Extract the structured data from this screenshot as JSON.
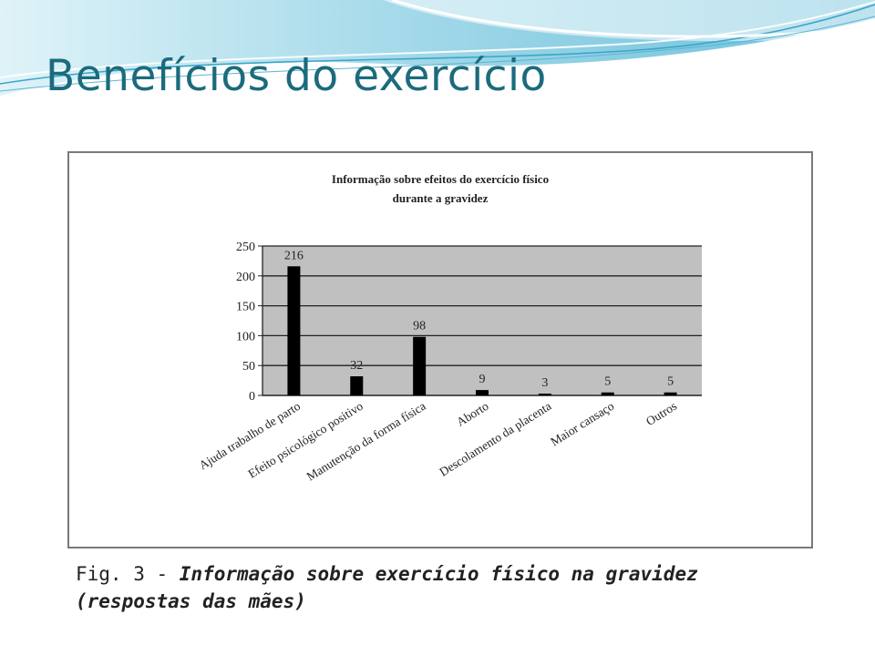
{
  "slide": {
    "title": "Benefícios do exercício"
  },
  "theme": {
    "title_color": "#1b6b7d",
    "wave_light": "#bde6f0",
    "wave_mid": "#7fc8df",
    "bar_color": "#000000",
    "plot_bg": "#c0c0c0"
  },
  "chart_data": {
    "type": "bar",
    "title_lines": [
      "Informação sobre efeitos do exercício físico",
      "durante a gravidez"
    ],
    "categories": [
      "Ajuda trabalho de parto",
      "Efeito psicológico positivo",
      "Manutenção da forma física",
      "Aborto",
      "Descolamento da placenta",
      "Maior cansaço",
      "Outros"
    ],
    "values": [
      216,
      32,
      98,
      9,
      3,
      5,
      5
    ],
    "data_labels": [
      "216",
      "32",
      "98",
      "9",
      "3",
      "5",
      "5"
    ],
    "ylim": [
      0,
      250
    ],
    "yticks": [
      0,
      50,
      100,
      150,
      200,
      250
    ],
    "grid": true,
    "xlabel": "",
    "ylabel": ""
  },
  "caption": {
    "prefix": "Fig. 3 - ",
    "emphasis": "Informação sobre exercício físico na gravidez (respostas das mães)"
  }
}
